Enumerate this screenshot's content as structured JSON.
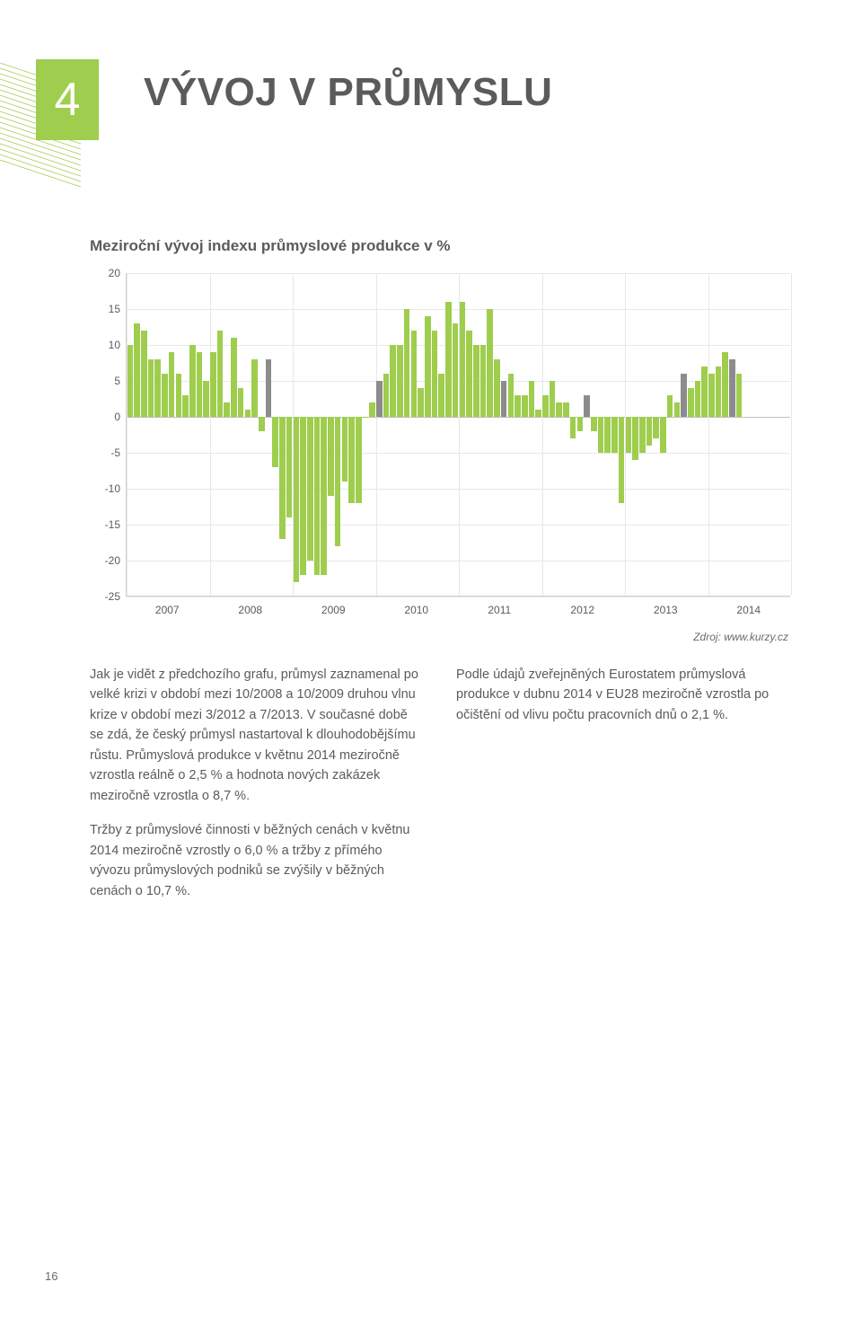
{
  "chapter_number": "4",
  "page_title": "VÝVOJ V PRŮMYSLU",
  "page_number": "16",
  "chart": {
    "type": "bar",
    "title": "Meziroční vývoj indexu průmyslové produkce v %",
    "source": "Zdroj: www.kurzy.cz",
    "ylim": [
      -25,
      20
    ],
    "ytick_step": 5,
    "yticks": [
      20,
      15,
      10,
      5,
      0,
      -5,
      -10,
      -15,
      -20,
      -25
    ],
    "xlabels": [
      "2007",
      "2008",
      "2009",
      "2010",
      "2011",
      "2012",
      "2013",
      "2014"
    ],
    "months_per_year": 12,
    "bar_gap_ratio": 0.15,
    "colors": {
      "primary": "#9fcd4e",
      "accent": "#8c8c8c",
      "grid": "#e8e8e8",
      "baseline": "#bfbfbf",
      "axis": "#cfcfcf",
      "background": "#ffffff"
    },
    "values": [
      10,
      13,
      12,
      8,
      8,
      6,
      9,
      6,
      3,
      10,
      9,
      5,
      9,
      12,
      2,
      11,
      4,
      1,
      8,
      -2,
      8,
      -7,
      -17,
      -14,
      -23,
      -22,
      -20,
      -22,
      -22,
      -11,
      -18,
      -9,
      -12,
      -12,
      0,
      2,
      5,
      6,
      10,
      10,
      15,
      12,
      4,
      14,
      12,
      6,
      16,
      13,
      16,
      12,
      10,
      10,
      15,
      8,
      5,
      6,
      3,
      3,
      5,
      1,
      3,
      5,
      2,
      2,
      -3,
      -2,
      3,
      -2,
      -5,
      -5,
      -5,
      -12,
      -5,
      -6,
      -5,
      -4,
      -3,
      -5,
      3,
      2,
      6,
      4,
      5,
      7,
      6,
      7,
      9,
      8,
      6
    ],
    "accent_indices": [
      20,
      36,
      54,
      66,
      80,
      87
    ]
  },
  "body": {
    "col1": {
      "p1": "Jak je vidět z předchozího grafu, průmysl zaznamenal po velké krizi v období mezi 10/2008 a 10/2009 druhou vlnu krize v období mezi 3/2012 a 7/2013. V současné době se zdá, že český průmysl nastartoval k dlouhodobějšímu růstu. Průmyslová produkce v květnu 2014 meziročně vzrostla reálně o 2,5 % a hodnota nových zakázek meziročně vzrostla o 8,7 %.",
      "p2": "Tržby z průmyslové činnosti v běžných cenách v květnu 2014 meziročně vzrostly o 6,0 % a tržby z přímého vývozu průmyslových podniků se zvýšily v běžných cenách o 10,7 %."
    },
    "col2": {
      "p1": "Podle údajů zveřejněných Eurostatem průmyslová produkce v dubnu 2014 v EU28 meziročně vzrostla po očištění od vlivu počtu pracovních dnů o 2,1 %."
    }
  },
  "deco": {
    "line_color": "#9fcd4e",
    "line_width": 0.8
  }
}
